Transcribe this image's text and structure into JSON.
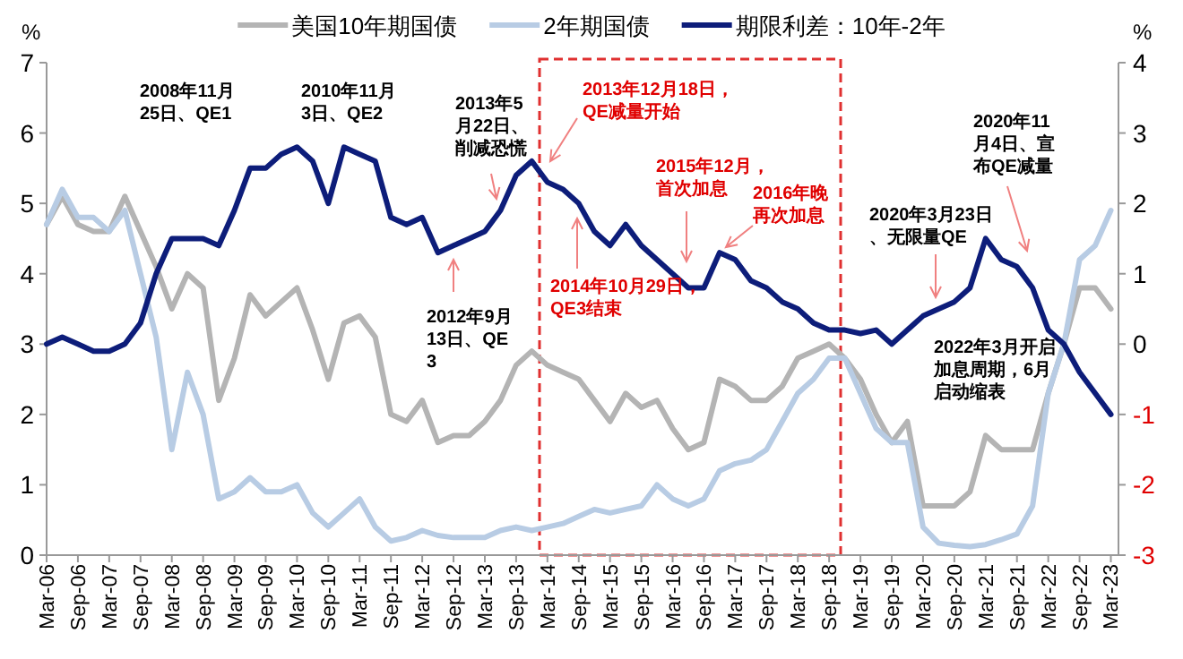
{
  "chart_data": {
    "type": "line",
    "ylabel": "%",
    "y2label": "%",
    "legend": "top",
    "line_style": "solid",
    "x": [
      "2006-03",
      "2006-06",
      "2006-09",
      "2006-12",
      "2007-03",
      "2007-06",
      "2007-09",
      "2007-12",
      "2008-03",
      "2008-06",
      "2008-09",
      "2008-12",
      "2009-03",
      "2009-06",
      "2009-09",
      "2009-12",
      "2010-03",
      "2010-06",
      "2010-09",
      "2010-12",
      "2011-03",
      "2011-06",
      "2011-09",
      "2011-12",
      "2012-03",
      "2012-06",
      "2012-09",
      "2012-12",
      "2013-03",
      "2013-06",
      "2013-09",
      "2013-12",
      "2014-03",
      "2014-06",
      "2014-09",
      "2014-12",
      "2015-03",
      "2015-06",
      "2015-09",
      "2015-12",
      "2016-03",
      "2016-06",
      "2016-09",
      "2016-12",
      "2017-03",
      "2017-06",
      "2017-09",
      "2017-12",
      "2018-03",
      "2018-06",
      "2018-09",
      "2018-12",
      "2019-03",
      "2019-06",
      "2019-09",
      "2019-12",
      "2020-03",
      "2020-06",
      "2020-09",
      "2020-12",
      "2021-03",
      "2021-06",
      "2021-09",
      "2021-12",
      "2022-03",
      "2022-06",
      "2022-09",
      "2022-12",
      "2023-03"
    ],
    "series": [
      {
        "name": "美国10年期国债",
        "color": "#b4b4b4",
        "values": [
          4.7,
          5.1,
          4.7,
          4.6,
          4.6,
          5.1,
          4.6,
          4.1,
          3.5,
          4.0,
          3.8,
          2.2,
          2.8,
          3.7,
          3.4,
          3.6,
          3.8,
          3.2,
          2.5,
          3.3,
          3.4,
          3.1,
          2.0,
          1.9,
          2.2,
          1.6,
          1.7,
          1.7,
          1.9,
          2.2,
          2.7,
          2.9,
          2.7,
          2.6,
          2.5,
          2.2,
          1.9,
          2.3,
          2.1,
          2.2,
          1.8,
          1.5,
          1.6,
          2.5,
          2.4,
          2.2,
          2.2,
          2.4,
          2.8,
          2.9,
          3.0,
          2.8,
          2.5,
          2.0,
          1.6,
          1.9,
          0.7,
          0.7,
          0.7,
          0.9,
          1.7,
          1.5,
          1.5,
          1.5,
          2.3,
          3.0,
          3.8,
          3.8,
          3.5
        ]
      },
      {
        "name": "2年期国债",
        "color": "#b8cce4",
        "values": [
          4.7,
          5.2,
          4.8,
          4.8,
          4.6,
          4.9,
          4.0,
          3.1,
          1.5,
          2.6,
          2.0,
          0.8,
          0.9,
          1.1,
          0.9,
          0.9,
          1.0,
          0.6,
          0.4,
          0.6,
          0.8,
          0.4,
          0.2,
          0.25,
          0.35,
          0.28,
          0.25,
          0.25,
          0.25,
          0.35,
          0.4,
          0.35,
          0.4,
          0.45,
          0.55,
          0.65,
          0.6,
          0.65,
          0.7,
          1.0,
          0.8,
          0.7,
          0.8,
          1.2,
          1.3,
          1.35,
          1.5,
          1.9,
          2.3,
          2.5,
          2.8,
          2.8,
          2.3,
          1.8,
          1.6,
          1.6,
          0.4,
          0.17,
          0.14,
          0.12,
          0.15,
          0.22,
          0.3,
          0.7,
          2.3,
          3.0,
          4.2,
          4.4,
          4.9
        ]
      },
      {
        "name": "期限利差：10年-2年",
        "color": "#0d1d7a",
        "axis": "y2",
        "values": [
          0.0,
          0.1,
          0.0,
          -0.1,
          -0.1,
          0.0,
          0.3,
          1.0,
          1.5,
          1.5,
          1.5,
          1.4,
          1.9,
          2.5,
          2.5,
          2.7,
          2.8,
          2.6,
          2.0,
          2.8,
          2.7,
          2.6,
          1.8,
          1.7,
          1.8,
          1.3,
          1.4,
          1.5,
          1.6,
          1.9,
          2.4,
          2.6,
          2.3,
          2.2,
          2.0,
          1.6,
          1.4,
          1.7,
          1.4,
          1.2,
          1.0,
          0.8,
          0.8,
          1.3,
          1.2,
          0.9,
          0.8,
          0.6,
          0.5,
          0.3,
          0.2,
          0.2,
          0.15,
          0.2,
          0.0,
          0.2,
          0.4,
          0.5,
          0.6,
          0.8,
          1.5,
          1.2,
          1.1,
          0.8,
          0.2,
          0.0,
          -0.4,
          -0.7,
          -1.0
        ]
      }
    ],
    "xlim": [
      "2006-03-01",
      "2023-04-15"
    ],
    "xticks": [
      {
        "value": "2006-03-01",
        "label": "Mar-06"
      },
      {
        "value": "2006-09-01",
        "label": "Sep-06"
      },
      {
        "value": "2007-03-01",
        "label": "Mar-07"
      },
      {
        "value": "2007-09-01",
        "label": "Sep-07"
      },
      {
        "value": "2008-03-01",
        "label": "Mar-08"
      },
      {
        "value": "2008-09-01",
        "label": "Sep-08"
      },
      {
        "value": "2009-03-01",
        "label": "Mar-09"
      },
      {
        "value": "2009-09-01",
        "label": "Sep-09"
      },
      {
        "value": "2010-03-01",
        "label": "Mar-10"
      },
      {
        "value": "2010-09-01",
        "label": "Sep-10"
      },
      {
        "value": "2011-03-01",
        "label": "Mar-11"
      },
      {
        "value": "2011-09-01",
        "label": "Sep-11"
      },
      {
        "value": "2012-03-01",
        "label": "Mar-12"
      },
      {
        "value": "2012-09-01",
        "label": "Sep-12"
      },
      {
        "value": "2013-03-01",
        "label": "Mar-13"
      },
      {
        "value": "2013-09-01",
        "label": "Sep-13"
      },
      {
        "value": "2014-03-01",
        "label": "Mar-14"
      },
      {
        "value": "2014-09-01",
        "label": "Sep-14"
      },
      {
        "value": "2015-03-01",
        "label": "Mar-15"
      },
      {
        "value": "2015-09-01",
        "label": "Sep-15"
      },
      {
        "value": "2016-03-01",
        "label": "Mar-16"
      },
      {
        "value": "2016-09-01",
        "label": "Sep-16"
      },
      {
        "value": "2017-03-01",
        "label": "Mar-17"
      },
      {
        "value": "2017-09-01",
        "label": "Sep-17"
      },
      {
        "value": "2018-03-01",
        "label": "Mar-18"
      },
      {
        "value": "2018-09-01",
        "label": "Sep-18"
      },
      {
        "value": "2019-03-01",
        "label": "Mar-19"
      },
      {
        "value": "2019-09-01",
        "label": "Sep-19"
      },
      {
        "value": "2020-03-01",
        "label": "Mar-20"
      },
      {
        "value": "2020-09-01",
        "label": "Sep-20"
      },
      {
        "value": "2021-03-01",
        "label": "Mar-21"
      },
      {
        "value": "2021-09-01",
        "label": "Sep-21"
      },
      {
        "value": "2022-03-01",
        "label": "Mar-22"
      },
      {
        "value": "2022-09-01",
        "label": "Sep-22"
      },
      {
        "value": "2023-03-01",
        "label": "Mar-23"
      }
    ],
    "ylim": [
      0,
      7
    ],
    "yticks": [
      0,
      1,
      2,
      3,
      4,
      5,
      6,
      7
    ],
    "y2lim": [
      -3,
      4
    ],
    "y2ticks": [
      -3,
      -2,
      -1,
      0,
      1,
      2,
      3,
      4
    ],
    "annotations": [
      "2008年11月25日、QE1",
      "2010年11月3日、QE2",
      "2013年5月22日、削减恐慌",
      "2012年9月13日、QE3",
      "2013年12月18日，QE减量开始",
      "2014年10月29日，QE3结束",
      "2015年12月，首次加息",
      "2016年晚再次加息",
      "2020年3月23日、无限量QE",
      "2020年11月4日、宣布QE减量",
      "2022年3月开启加息周期，6月启动缩表"
    ]
  }
}
